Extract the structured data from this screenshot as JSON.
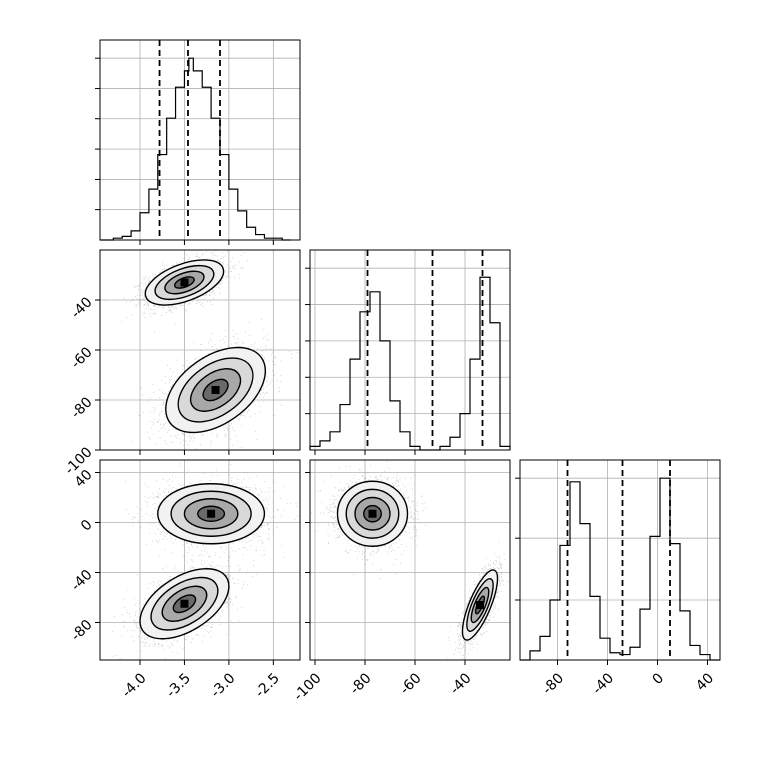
{
  "chart_data": [
    {
      "type": "histogram",
      "panel": "diag-0",
      "x_range": [
        -4.45,
        -2.2
      ],
      "xticks": [
        "-4.0",
        "-3.5",
        "-3.0",
        "-2.5"
      ],
      "xtick_values": [
        -4.0,
        -3.5,
        -3.0,
        -2.5
      ],
      "dashed_quantiles": [
        -3.78,
        -3.46,
        -3.1
      ],
      "y_max": 1.1,
      "y_gridlines": [
        0.167,
        0.333,
        0.5,
        0.667,
        0.833,
        1.0
      ],
      "bin_edges": [
        -4.45,
        -4.3,
        -4.2,
        -4.1,
        -4.0,
        -3.9,
        -3.8,
        -3.7,
        -3.6,
        -3.5,
        -3.45,
        -3.4,
        -3.3,
        -3.2,
        -3.1,
        -3.0,
        -2.9,
        -2.8,
        -2.7,
        -2.6,
        -2.5,
        -2.4,
        -2.3
      ],
      "density": [
        0.0,
        0.01,
        0.02,
        0.05,
        0.15,
        0.28,
        0.47,
        0.67,
        0.84,
        0.93,
        1.0,
        0.93,
        0.84,
        0.67,
        0.47,
        0.28,
        0.16,
        0.07,
        0.03,
        0.01,
        0.01,
        0.0
      ]
    },
    {
      "type": "2d-histogram-contour",
      "panel": "lower-1-0",
      "x_range": [
        -4.45,
        -2.2
      ],
      "y_range": [
        -100,
        -20
      ],
      "yticks": [
        "-40",
        "-60",
        "-80",
        "-100"
      ],
      "ytick_values": [
        -40,
        -60,
        -80,
        -100
      ],
      "modes": [
        {
          "center": [
            -3.5,
            -33
          ],
          "sigma": [
            0.22,
            4.5
          ],
          "corr": 0.5,
          "weight": 0.5
        },
        {
          "center": [
            -3.15,
            -76
          ],
          "sigma": [
            0.28,
            8.5
          ],
          "corr": 0.45,
          "weight": 0.5
        }
      ]
    },
    {
      "type": "histogram",
      "panel": "diag-1",
      "x_range": [
        -102,
        -22
      ],
      "dashed_quantiles": [
        -79,
        -53,
        -33
      ],
      "y_max": 1.1,
      "y_gridlines": [
        0.2,
        0.4,
        0.6,
        0.8,
        1.0
      ],
      "bin_edges": [
        -102,
        -98,
        -94,
        -90,
        -86,
        -82,
        -78,
        -74,
        -70,
        -66,
        -62,
        -58,
        -54,
        -50,
        -46,
        -42,
        -38,
        -34,
        -30,
        -26,
        -22
      ],
      "density": [
        0.02,
        0.05,
        0.1,
        0.25,
        0.5,
        0.76,
        0.87,
        0.6,
        0.27,
        0.1,
        0.02,
        0.0,
        0.0,
        0.02,
        0.07,
        0.2,
        0.5,
        0.95,
        0.7,
        0.02
      ]
    },
    {
      "type": "2d-histogram-contour",
      "panel": "lower-2-0",
      "x_range": [
        -4.45,
        -2.2
      ],
      "y_range": [
        -110,
        50
      ],
      "yticks": [
        "40",
        "0",
        "-40",
        "-80"
      ],
      "ytick_values": [
        40,
        0,
        -40,
        -80
      ],
      "modes": [
        {
          "center": [
            -3.2,
            7
          ],
          "sigma": [
            0.3,
            12
          ],
          "corr": 0.0,
          "weight": 0.5
        },
        {
          "center": [
            -3.5,
            -65
          ],
          "sigma": [
            0.25,
            14
          ],
          "corr": 0.5,
          "weight": 0.5
        }
      ]
    },
    {
      "type": "2d-histogram-contour",
      "panel": "lower-2-1",
      "x_range": [
        -102,
        -22
      ],
      "y_range": [
        -110,
        50
      ],
      "xticks": [
        "-100",
        "-80",
        "-60",
        "-40"
      ],
      "xtick_values": [
        -100,
        -80,
        -60,
        -40
      ],
      "modes": [
        {
          "center": [
            -77,
            7
          ],
          "sigma": [
            7,
            13
          ],
          "corr": 0.0,
          "weight": 0.5
        },
        {
          "center": [
            -34,
            -66
          ],
          "sigma": [
            3.5,
            14
          ],
          "corr": 0.75,
          "weight": 0.5
        }
      ]
    },
    {
      "type": "histogram",
      "panel": "diag-2",
      "x_range": [
        -110,
        50
      ],
      "xticks": [
        "-80",
        "-40",
        "0",
        "40"
      ],
      "xtick_values": [
        -80,
        -40,
        0,
        40
      ],
      "dashed_quantiles": [
        -72,
        -28,
        10
      ],
      "y_max": 1.1,
      "y_gridlines": [
        0.33,
        0.67,
        1.0
      ],
      "bin_edges": [
        -110,
        -102,
        -94,
        -86,
        -78,
        -70,
        -62,
        -54,
        -46,
        -38,
        -30,
        -22,
        -14,
        -6,
        2,
        10,
        18,
        26,
        34,
        42,
        50
      ],
      "density": [
        0.0,
        0.05,
        0.13,
        0.33,
        0.63,
        0.98,
        0.75,
        0.35,
        0.12,
        0.04,
        0.03,
        0.07,
        0.28,
        0.68,
        1.0,
        0.64,
        0.27,
        0.08,
        0.03,
        0.0
      ]
    }
  ]
}
